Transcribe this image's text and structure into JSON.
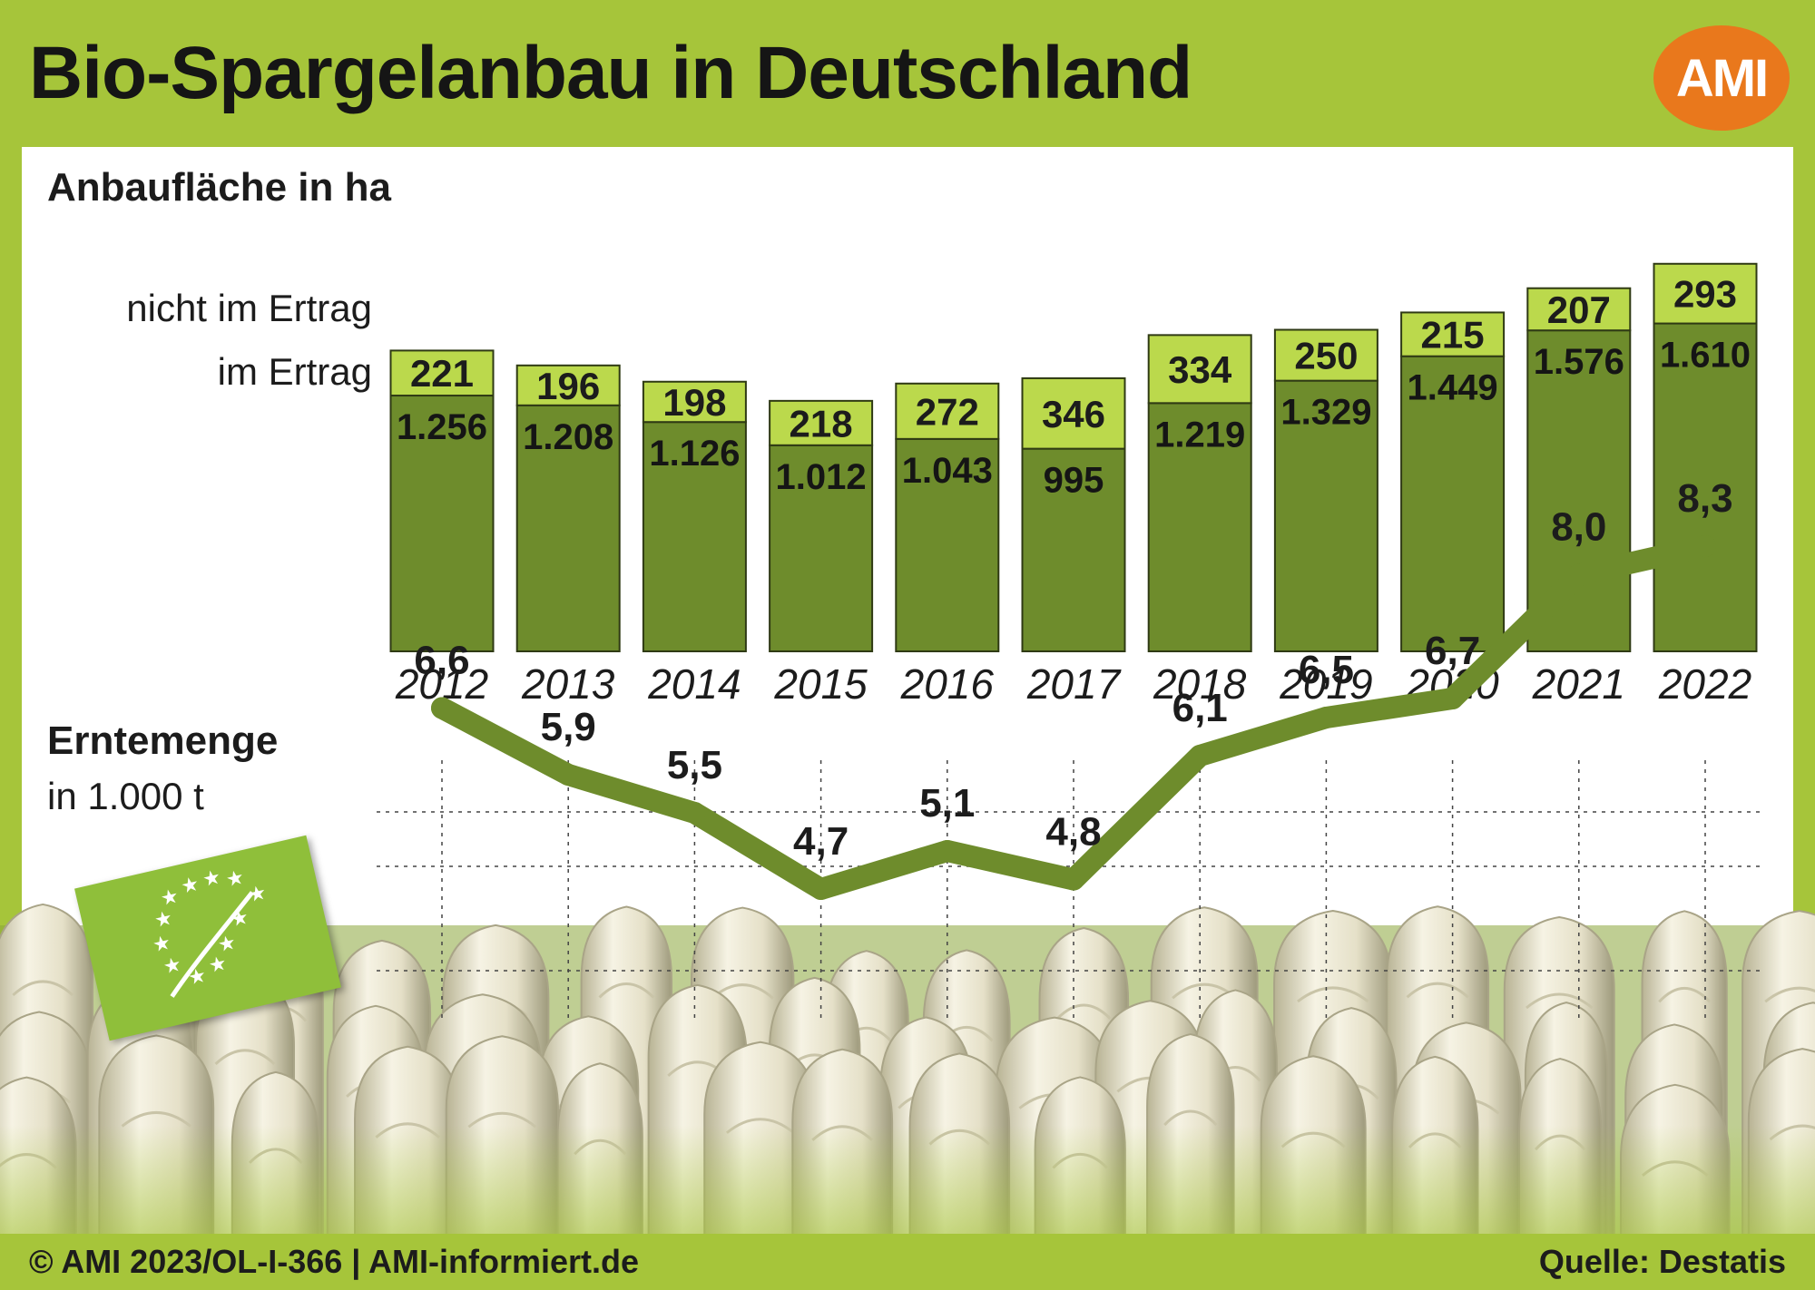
{
  "title": "Bio-Spargelanbau in Deutschland",
  "logo_text": "AMI",
  "colors": {
    "background": "#a6c53a",
    "bar_in_yield": "#6e8c2c",
    "bar_not_in_yield": "#bbd94c",
    "line": "#6e8c2c",
    "logo": "#e9781c"
  },
  "area_section": {
    "title": "Anbaufläche in ha"
  },
  "harvest_section": {
    "title": "Erntemenge",
    "unit": "in 1.000 t"
  },
  "legend": {
    "not_in_yield": "nicht im Ertrag",
    "in_yield": "im Ertrag"
  },
  "chart_data": [
    {
      "type": "bar",
      "stacked": true,
      "title": "Anbaufläche in ha",
      "categories": [
        "2012",
        "2013",
        "2014",
        "2015",
        "2016",
        "2017",
        "2018",
        "2019",
        "2020",
        "2021",
        "2022"
      ],
      "series": [
        {
          "name": "im Ertrag",
          "values": [
            1256,
            1208,
            1126,
            1012,
            1043,
            995,
            1219,
            1329,
            1449,
            1576,
            1610
          ],
          "labels": [
            "1.256",
            "1.208",
            "1.126",
            "1.012",
            "1.043",
            "995",
            "1.219",
            "1.329",
            "1.449",
            "1.576",
            "1.610"
          ]
        },
        {
          "name": "nicht im Ertrag",
          "values": [
            221,
            196,
            198,
            218,
            272,
            346,
            334,
            250,
            215,
            207,
            293
          ],
          "labels": [
            "221",
            "196",
            "198",
            "218",
            "272",
            "346",
            "334",
            "250",
            "215",
            "207",
            "293"
          ]
        }
      ],
      "ylim": [
        0,
        2000
      ]
    },
    {
      "type": "line",
      "title": "Erntemenge",
      "ylabel": "in 1.000 t",
      "categories": [
        "2012",
        "2013",
        "2014",
        "2015",
        "2016",
        "2017",
        "2018",
        "2019",
        "2020",
        "2021",
        "2022"
      ],
      "values": [
        6.6,
        5.9,
        5.5,
        4.7,
        5.1,
        4.8,
        6.1,
        6.5,
        6.7,
        8.0,
        8.3
      ],
      "labels": [
        "6,6",
        "5,9",
        "5,5",
        "4,7",
        "5,1",
        "4,8",
        "6,1",
        "6,5",
        "6,7",
        "8,0",
        "8,3"
      ],
      "grid": true
    }
  ],
  "footer": {
    "left": "© AMI 2023/OL-I-366 | AMI-informiert.de",
    "right": "Quelle: Destatis"
  }
}
